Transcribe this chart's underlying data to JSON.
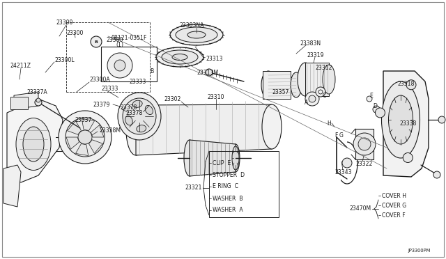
{
  "bg_color": "#ffffff",
  "line_color": "#1a1a1a",
  "text_color": "#1a1a1a",
  "fig_width": 6.4,
  "fig_height": 3.72,
  "dpi": 100,
  "watermark": "JP3300PM",
  "label_fontsize": 5.6,
  "legend_items": [
    {
      "letter": "A",
      "name": "WASHER"
    },
    {
      "letter": "B",
      "name": "WASHER"
    },
    {
      "letter": "C",
      "name": "E RING"
    },
    {
      "letter": "D",
      "name": "STOPPER"
    },
    {
      "letter": "E",
      "name": "CLIP"
    }
  ],
  "cover_items": [
    {
      "letter": "F",
      "name": "COVER F"
    },
    {
      "letter": "G",
      "name": "COVER G"
    },
    {
      "letter": "H",
      "name": "COVER H"
    }
  ]
}
